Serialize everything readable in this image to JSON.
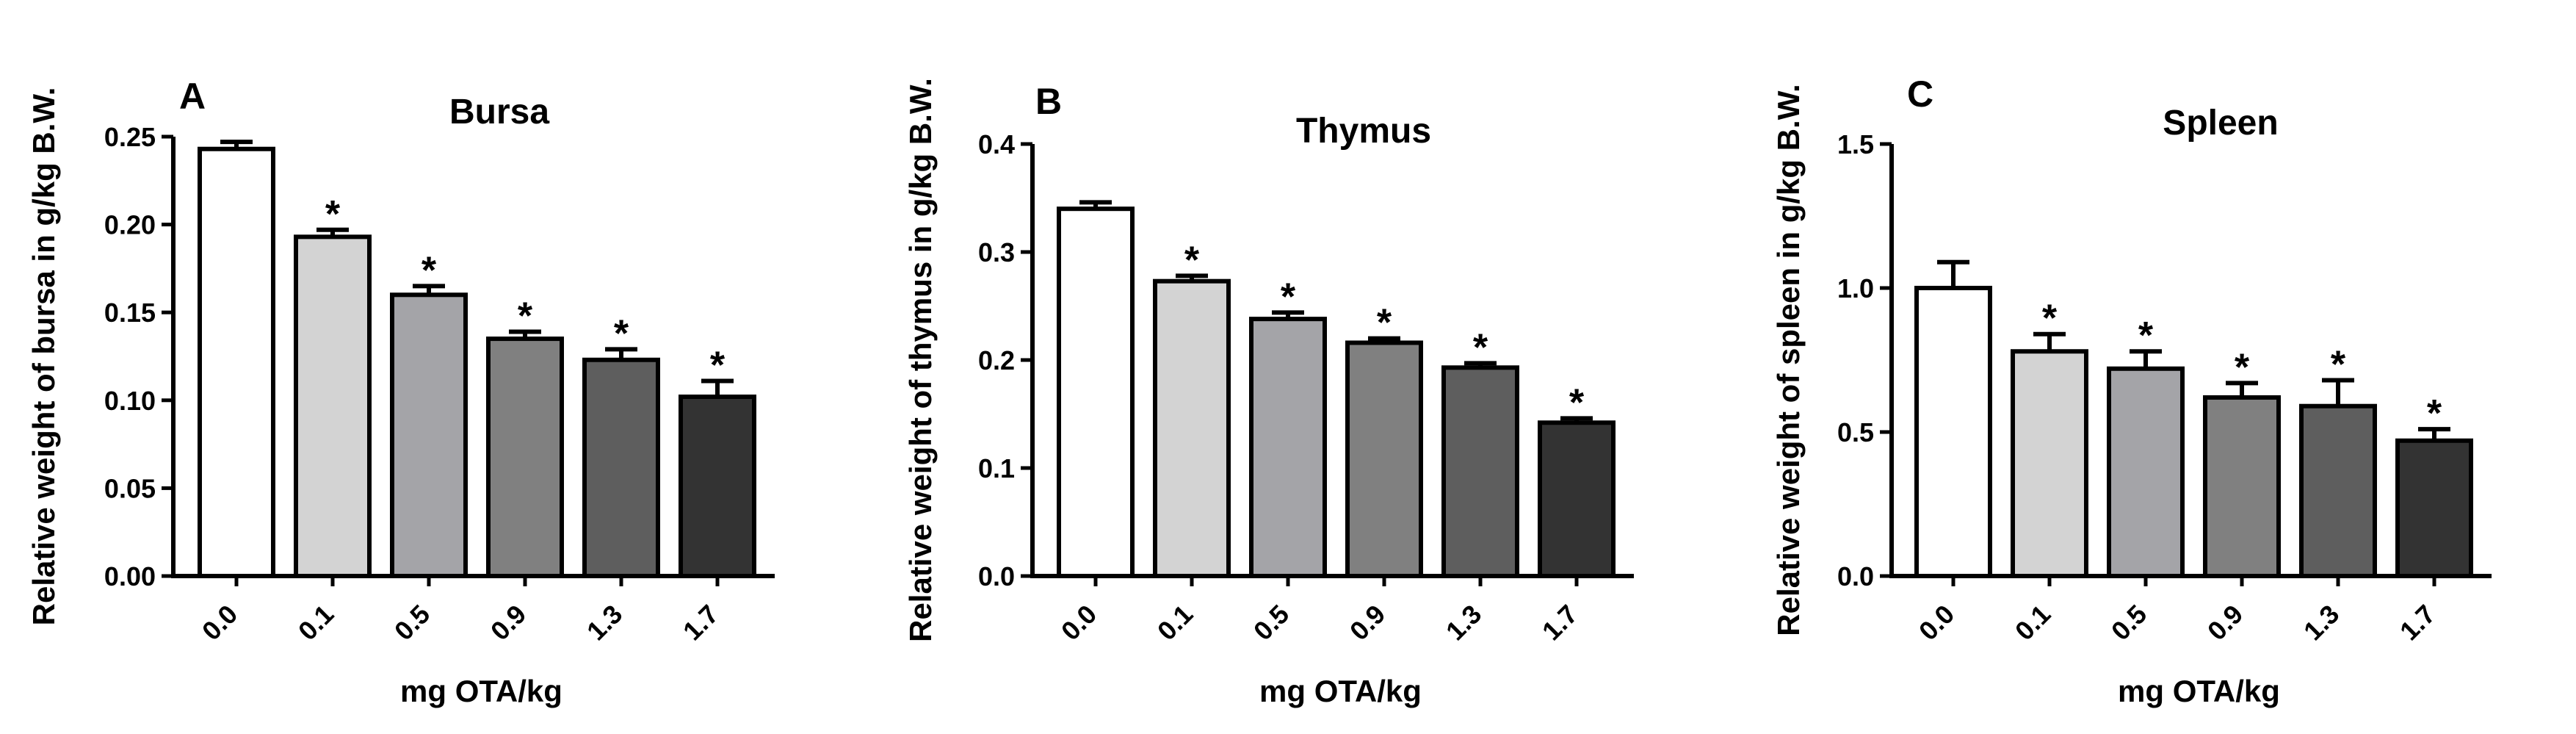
{
  "colors": [
    "#ffffff",
    "#d3d3d3",
    "#a4a4a8",
    "#808080",
    "#5e5e5e",
    "#333333"
  ],
  "chart_data": [
    {
      "type": "bar",
      "panel": "A",
      "title": "Bursa",
      "xlabel": "mg OTA/kg",
      "ylabel": "Relative weight of bursa in g/kg B.W.",
      "categories": [
        "0.0",
        "0.1",
        "0.5",
        "0.9",
        "1.3",
        "1.7"
      ],
      "values": [
        0.243,
        0.193,
        0.16,
        0.135,
        0.123,
        0.102
      ],
      "errors": [
        0.004,
        0.004,
        0.005,
        0.004,
        0.006,
        0.009
      ],
      "significant": [
        "",
        "*",
        "*",
        "*",
        "*",
        "*"
      ],
      "ylim": [
        0,
        0.25
      ],
      "yticks": [
        "0.00",
        "0.05",
        "0.10",
        "0.15",
        "0.20",
        "0.25"
      ],
      "ytick_values": [
        0,
        0.05,
        0.1,
        0.15,
        0.2,
        0.25
      ]
    },
    {
      "type": "bar",
      "panel": "B",
      "title": "Thymus",
      "xlabel": "mg OTA/kg",
      "ylabel": "Relative weight of thymus in g/kg B.W.",
      "categories": [
        "0.0",
        "0.1",
        "0.5",
        "0.9",
        "1.3",
        "1.7"
      ],
      "values": [
        0.34,
        0.273,
        0.238,
        0.216,
        0.193,
        0.142
      ],
      "errors": [
        0.006,
        0.005,
        0.006,
        0.004,
        0.004,
        0.004
      ],
      "significant": [
        "",
        "*",
        "*",
        "*",
        "*",
        "*"
      ],
      "ylim": [
        0,
        0.4
      ],
      "yticks": [
        "0.0",
        "0.1",
        "0.2",
        "0.3",
        "0.4"
      ],
      "ytick_values": [
        0,
        0.1,
        0.2,
        0.3,
        0.4
      ]
    },
    {
      "type": "bar",
      "panel": "C",
      "title": "Spleen",
      "xlabel": "mg OTA/kg",
      "ylabel": "Relative weight of spleen in g/kg B.W.",
      "categories": [
        "0.0",
        "0.1",
        "0.5",
        "0.9",
        "1.3",
        "1.7"
      ],
      "values": [
        1.0,
        0.78,
        0.72,
        0.62,
        0.59,
        0.47
      ],
      "errors": [
        0.09,
        0.06,
        0.06,
        0.05,
        0.09,
        0.04
      ],
      "significant": [
        "",
        "*",
        "*",
        "*",
        "*",
        "*"
      ],
      "ylim": [
        0,
        1.5
      ],
      "yticks": [
        "0.0",
        "0.5",
        "1.0",
        "1.5"
      ],
      "ytick_values": [
        0,
        0.5,
        1.0,
        1.5
      ]
    }
  ]
}
